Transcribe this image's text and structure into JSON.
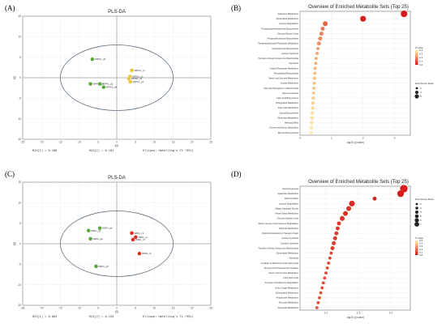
{
  "panels": {
    "A": "(A)",
    "B": "(B)",
    "C": "(C)",
    "D": "(D)"
  },
  "colors": {
    "group_green": "#5aa83a",
    "group_yellow": "#e9c23a",
    "group_red": "#dd2a22",
    "ellipse": "#5d6f7f",
    "dot_low": "#fff2a8",
    "dot_high": "#d7191c"
  },
  "chart_data": [
    {
      "type": "scatter",
      "title": "PLS-DA",
      "xlabel": "t[1]",
      "ylabel": "t[2]",
      "xlim": [
        -25,
        25
      ],
      "ylim": [
        -15,
        15
      ],
      "x_ticks": [
        "-25",
        "-20",
        "-15",
        "-10",
        "-5",
        "0",
        "5",
        "10",
        "15",
        "20",
        "25"
      ],
      "y_ticks": [
        "-15",
        "-10",
        "-5",
        "0",
        "5",
        "10",
        "15"
      ],
      "grid": true,
      "footer": {
        "r2x1": "R2X[1] = 0.168",
        "r2x2": "R2X[2] = 0.101",
        "ellipse": "Ellipse: Hotelling's T2 (95%)"
      },
      "series": [
        {
          "color": "#5aa83a",
          "points": [
            {
              "label": "WPK1_g3",
              "x": -6.5,
              "y": 4.5
            },
            {
              "label": "WPK1_g2",
              "x": -7.0,
              "y": -1.5
            },
            {
              "label": "WPK1_g1",
              "x": -4.5,
              "y": -1.5
            },
            {
              "label": "WPK1_g4",
              "x": -3.5,
              "y": -2.3
            }
          ]
        },
        {
          "color": "#e9c23a",
          "points": [
            {
              "label": "WPK2_y1",
              "x": 4.0,
              "y": 1.8
            },
            {
              "label": "WPK2_y2",
              "x": 3.5,
              "y": 0.3
            },
            {
              "label": "WPK2_y3",
              "x": 3.2,
              "y": -0.2
            },
            {
              "label": "WPK2_y4",
              "x": 3.6,
              "y": -1.0
            }
          ]
        }
      ]
    },
    {
      "type": "scatter",
      "title": "Overview of Enriched Metabolite Sets (Top 25)",
      "xlabel": "-log10 (p value)",
      "x_ticks": [
        "0",
        "1",
        "2",
        "3"
      ],
      "xlim": [
        0,
        3.5
      ],
      "colorbar": {
        "title": "P value",
        "ticks": [
          "0.4",
          "0.3",
          "0.2",
          "0.1",
          "0.0"
        ]
      },
      "size_legend": {
        "title": "Enrichment Ratio",
        "items": [
          "2",
          "4",
          "6"
        ]
      },
      "categories": [
        "Galactose Metabolism",
        "Glycerolipid Metabolism",
        "Lactose Degradation",
        "Phosphatidylethanolamine Biosynthesis",
        "Glucose-Alanine Cycle",
        "Phosphatidylcholine Biosynthesis",
        "Phosphatidylinositol Phosphate Metabolism",
        "Catecholamine Biosynthesis",
        "Lactose Synthesis",
        "Transfer of Acetyl Groups into Mitochondria",
        "Glycolysis",
        "Inositol Phosphate Metabolism",
        "Phospholipid Biosynthesis",
        "Starch and Sucrose Metabolism",
        "Inositol Metabolism",
        "Fatty Acid Elongation in Mitochondria",
        "Gluconeogenesis",
        "Fatty Acid Biosynthesis",
        "Sphingolipid Metabolism",
        "Fatty acid Metabolism",
        "Steroid Biosynthesis",
        "Glutamate Metabolism",
        "Warburg Effect",
        "Glycine and Serine Metabolism",
        "Bile Acid Biosynthesis"
      ],
      "values": [
        3.3,
        2.0,
        0.8,
        0.72,
        0.68,
        0.64,
        0.6,
        0.57,
        0.54,
        0.51,
        0.5,
        0.48,
        0.47,
        0.46,
        0.45,
        0.44,
        0.43,
        0.42,
        0.41,
        0.4,
        0.39,
        0.38,
        0.37,
        0.36,
        0.35
      ],
      "enrichment": [
        6,
        5,
        4,
        3,
        3,
        3,
        3,
        2,
        2,
        2,
        2,
        2,
        2,
        2,
        2,
        2,
        2,
        2,
        2,
        2,
        2,
        2,
        2,
        2,
        2
      ],
      "p_values": [
        0.0005,
        0.01,
        0.16,
        0.19,
        0.21,
        0.23,
        0.25,
        0.27,
        0.29,
        0.31,
        0.32,
        0.33,
        0.34,
        0.35,
        0.36,
        0.36,
        0.37,
        0.38,
        0.39,
        0.4,
        0.41,
        0.42,
        0.43,
        0.44,
        0.45
      ]
    },
    {
      "type": "scatter",
      "title": "PLS-DA",
      "xlabel": "t[1]",
      "ylabel": "t[2]",
      "xlim": [
        -25,
        25
      ],
      "ylim": [
        -15,
        15
      ],
      "x_ticks": [
        "-25",
        "-20",
        "-15",
        "-10",
        "-5",
        "0",
        "5",
        "10",
        "15",
        "20",
        "25"
      ],
      "y_ticks": [
        "-15",
        "-10",
        "-5",
        "0",
        "5",
        "10",
        "15"
      ],
      "grid": true,
      "footer": {
        "r2x1": "R2X[1] = 0.063",
        "r2x2": "R2X[2] = 0.155",
        "ellipse": "Ellipse: Hotelling's T2 (95%)"
      },
      "series": [
        {
          "color": "#5aa83a",
          "points": [
            {
              "label": "WRG_g1",
              "x": -7.5,
              "y": 3.2
            },
            {
              "label": "WRG_g2",
              "x": -7.0,
              "y": 1.2
            },
            {
              "label": "WRG_g3",
              "x": -5.5,
              "y": -5.5
            },
            {
              "label": "WRG_g4",
              "x": -4.5,
              "y": 3.8
            }
          ]
        },
        {
          "color": "#dd2a22",
          "points": [
            {
              "label": "WRG_r1",
              "x": 4.0,
              "y": 2.6
            },
            {
              "label": "WRG_r2",
              "x": 5.0,
              "y": 1.6
            },
            {
              "label": "WRG_r3",
              "x": 4.3,
              "y": 1.0
            },
            {
              "label": "WRG_r4",
              "x": 6.0,
              "y": -2.4
            }
          ]
        }
      ]
    },
    {
      "type": "scatter",
      "title": "Overview of Enriched Metabolite Sets (Top 25)",
      "xlabel": "-log10 (p value)",
      "x_ticks": [
        "1.0",
        "1.5",
        "2.0"
      ],
      "xlim": [
        0.6,
        2.3
      ],
      "colorbar": {
        "title": "P value",
        "ticks": [
          "0.5",
          "0.4",
          "0.3",
          "0.2",
          "0.1",
          "0.0"
        ]
      },
      "size_legend": {
        "title": "Enrichment Ratio",
        "items": [
          "2",
          "3",
          "4",
          "5",
          "6",
          "7"
        ]
      },
      "categories": [
        "Gluconeogenesis",
        "Galactose Metabolism",
        "Warburg Effect",
        "Lactose Degradation",
        "Malate-Aspartate Shuttle",
        "Ketone Body Metabolism",
        "Glucose-Alanine Cycle",
        "Valine, Leucine and Isoleucine Degradation",
        "Butyrate Metabolism",
        "Mitochondrial Electron Transport Chain",
        "Lactose Synthesis",
        "Carnitine Synthesis",
        "Transfer of Acetyl Groups into Mitochondria",
        "Glycerolipid Metabolism",
        "Glycolysis",
        "Oxidation of Branched Chain Fatty Acids",
        "Phytanic Acid Peroxisomal Oxidation",
        "Starch and Sucrose Metabolism",
        "Citric Acid Cycle",
        "Fructose and Mannose Degradation",
        "Amino Sugar Metabolism",
        "Sphingolipid Metabolism",
        "Propanoate Metabolism",
        "Pyruvate Metabolism",
        "Glutamate Metabolism"
      ],
      "values": [
        2.2,
        2.15,
        1.75,
        1.4,
        1.35,
        1.3,
        1.25,
        1.2,
        1.18,
        1.16,
        1.14,
        1.12,
        1.1,
        1.08,
        1.06,
        1.04,
        1.02,
        1.0,
        0.98,
        0.96,
        0.94,
        0.92,
        0.9,
        0.88,
        0.86
      ],
      "enrichment": [
        7,
        6,
        3,
        5,
        4,
        4,
        4,
        3,
        3,
        3,
        3,
        3,
        3,
        2,
        2,
        2,
        2,
        2,
        2,
        2,
        2,
        2,
        2,
        2,
        2
      ],
      "p_values": [
        0.006,
        0.007,
        0.018,
        0.04,
        0.045,
        0.05,
        0.056,
        0.063,
        0.066,
        0.069,
        0.072,
        0.076,
        0.079,
        0.083,
        0.087,
        0.091,
        0.095,
        0.1,
        0.105,
        0.11,
        0.115,
        0.12,
        0.126,
        0.132,
        0.138
      ]
    }
  ]
}
